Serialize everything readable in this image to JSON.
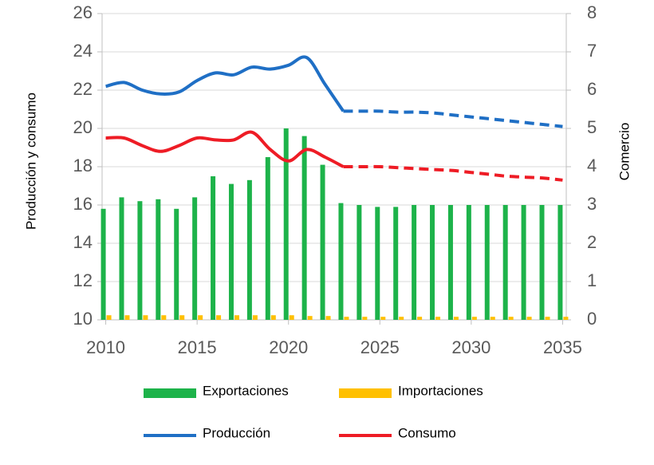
{
  "chart_data": {
    "type": "combo",
    "y_label": "Producción y consumo",
    "y2_label": "Comercio",
    "x": [
      2010,
      2011,
      2012,
      2013,
      2014,
      2015,
      2016,
      2017,
      2018,
      2019,
      2020,
      2021,
      2022,
      2023,
      2024,
      2025,
      2026,
      2027,
      2028,
      2029,
      2030,
      2031,
      2032,
      2033,
      2034,
      2035
    ],
    "xlim": [
      2009.8,
      2035.2
    ],
    "xticks": [
      2010,
      2015,
      2020,
      2025,
      2030,
      2035
    ],
    "ylim": [
      10,
      26
    ],
    "yticks": [
      10,
      12,
      14,
      16,
      18,
      20,
      22,
      24,
      26
    ],
    "y2lim": [
      0,
      8
    ],
    "y2ticks": [
      0,
      1,
      2,
      3,
      4,
      5,
      6,
      7,
      8
    ],
    "grid": true,
    "forecast_start": 2023,
    "series": [
      {
        "name": "Exportaciones",
        "type": "bar",
        "axis": "y2",
        "color": "#1db34a",
        "values": [
          2.9,
          3.2,
          3.1,
          3.15,
          2.9,
          3.2,
          3.75,
          3.55,
          3.65,
          4.25,
          5.0,
          4.8,
          4.05,
          3.05,
          3.0,
          2.95,
          2.95,
          3.0,
          3.0,
          3.0,
          3.0,
          3.0,
          3.0,
          3.0,
          3.0,
          3.0
        ]
      },
      {
        "name": "Importaciones",
        "type": "bar",
        "axis": "y2",
        "color": "#ffc000",
        "values": [
          0.12,
          0.12,
          0.12,
          0.12,
          0.12,
          0.12,
          0.12,
          0.12,
          0.12,
          0.12,
          0.12,
          0.1,
          0.1,
          0.08,
          0.08,
          0.08,
          0.08,
          0.08,
          0.08,
          0.08,
          0.08,
          0.08,
          0.08,
          0.08,
          0.08,
          0.08
        ]
      },
      {
        "name": "Producción",
        "type": "line",
        "color": "#1f6fc5",
        "values": [
          22.2,
          22.4,
          22.0,
          21.8,
          21.9,
          22.5,
          22.9,
          22.8,
          23.2,
          23.1,
          23.3,
          23.7,
          22.3,
          20.9,
          20.9,
          20.9,
          20.85,
          20.85,
          20.8,
          20.7,
          20.6,
          20.5,
          20.4,
          20.3,
          20.2,
          20.1
        ]
      },
      {
        "name": "Consumo",
        "type": "line",
        "color": "#ee1c25",
        "values": [
          19.5,
          19.5,
          19.1,
          18.8,
          19.1,
          19.5,
          19.4,
          19.4,
          19.8,
          18.9,
          18.3,
          18.9,
          18.5,
          18.0,
          18.0,
          18.0,
          17.95,
          17.9,
          17.85,
          17.8,
          17.7,
          17.6,
          17.5,
          17.45,
          17.4,
          17.3
        ]
      }
    ]
  }
}
